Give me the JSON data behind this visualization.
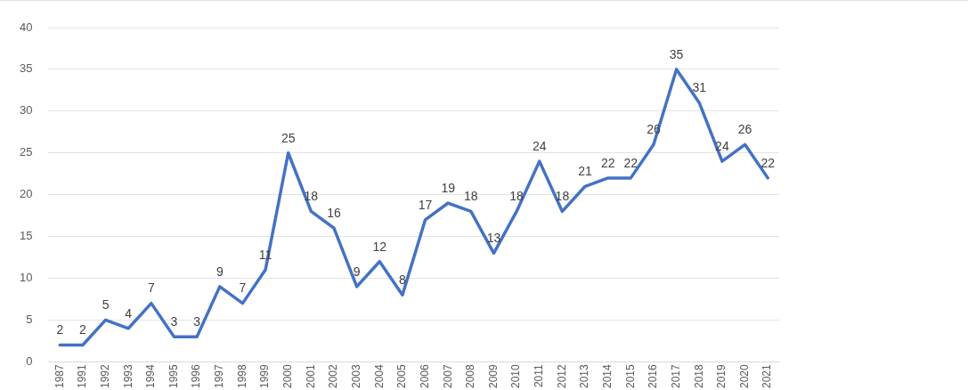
{
  "chart_data": {
    "type": "line",
    "categories": [
      "1987",
      "1991",
      "1992",
      "1993",
      "1994",
      "1995",
      "1996",
      "1997",
      "1998",
      "1999",
      "2000",
      "2001",
      "2002",
      "2003",
      "2004",
      "2005",
      "2006",
      "2007",
      "2008",
      "2009",
      "2010",
      "2011",
      "2012",
      "2013",
      "2014",
      "2015",
      "2016",
      "2017",
      "2018",
      "2019",
      "2020",
      "2021"
    ],
    "series": [
      {
        "color": "#4472c4",
        "values": [
          2,
          2,
          5,
          4,
          7,
          3,
          3,
          9,
          7,
          11,
          25,
          18,
          16,
          9,
          12,
          8,
          17,
          19,
          18,
          13,
          18,
          24,
          18,
          21,
          22,
          22,
          26,
          35,
          31,
          24,
          26,
          22
        ]
      }
    ],
    "ylim": [
      0,
      40
    ],
    "yticks": [
      0,
      5,
      10,
      15,
      20,
      25,
      30,
      35,
      40
    ],
    "grid": "y",
    "legend": false,
    "marker": "none",
    "line_style": "solid",
    "data_labels": true
  }
}
